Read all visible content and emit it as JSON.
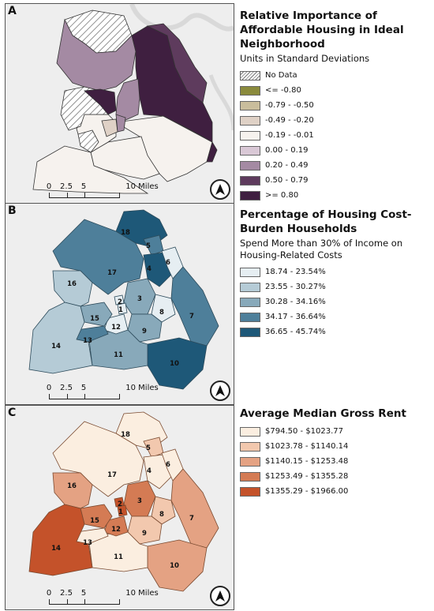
{
  "panels": [
    {
      "letter": "A",
      "title": "Relative Importance of Affordable Housing in Ideal Neighborhood",
      "subtitle": "Units in Standard Deviations",
      "legend": [
        {
          "label": "No Data",
          "color": "hatch"
        },
        {
          "label": "<= -0.80",
          "color": "#8a8a3c"
        },
        {
          "label": "-0.79 - -0.50",
          "color": "#c9bd9c"
        },
        {
          "label": "-0.49 - -0.20",
          "color": "#dfd1c6"
        },
        {
          "label": "-0.19 - -0.01",
          "color": "#f6f2ee"
        },
        {
          "label": "0.00 - 0.19",
          "color": "#d9c8d6"
        },
        {
          "label": "0.20 - 0.49",
          "color": "#a48aa3"
        },
        {
          "label": "0.50 - 0.79",
          "color": "#5e3b5d"
        },
        {
          "label": ">= 0.80",
          "color": "#3f1f40"
        }
      ]
    },
    {
      "letter": "B",
      "title": "Percentage of Housing Cost-Burden Households",
      "subtitle": "Spend More than 30% of Income on Housing-Related Costs",
      "legend": [
        {
          "label": "18.74 - 23.54%",
          "color": "#e6eef2"
        },
        {
          "label": "23.55 - 30.27%",
          "color": "#b5cbd6"
        },
        {
          "label": "30.28 - 34.16%",
          "color": "#88a9ba"
        },
        {
          "label": "34.17 - 36.64%",
          "color": "#4e7f9a"
        },
        {
          "label": "36.65 - 45.74%",
          "color": "#1e5878"
        }
      ]
    },
    {
      "letter": "C",
      "title": "Average Median Gross Rent",
      "subtitle": "",
      "legend": [
        {
          "label": "$794.50 - $1023.77",
          "color": "#fbeee0"
        },
        {
          "label": "$1023.78 - $1140.14",
          "color": "#f2c8ae"
        },
        {
          "label": "$1140.15 - $1253.48",
          "color": "#e4a283"
        },
        {
          "label": "$1253.49 - $1355.28",
          "color": "#d47b54"
        },
        {
          "label": "$1355.29 - $1966.00",
          "color": "#c4522a"
        }
      ]
    }
  ],
  "scalebar": {
    "ticks": [
      "0",
      "2.5",
      "5",
      "10 Miles"
    ]
  },
  "district_labels": [
    "1",
    "2",
    "3",
    "4",
    "5",
    "6",
    "7",
    "8",
    "9",
    "10",
    "11",
    "12",
    "13",
    "14",
    "15",
    "16",
    "17",
    "18"
  ],
  "fills": {
    "A": {
      "nw": "hatch",
      "north": "#a48aa3",
      "w_hatch": "hatch",
      "ne": "#5e3b5d",
      "ne2": "#3f1f40",
      "center": "#d9c8d6",
      "small1": "#dfd1c6",
      "small2": "#a48aa3",
      "se": "#f6f2ee",
      "s": "#f6f2ee",
      "sw": "#f6f2ee",
      "w": "#f6f2ee",
      "e": "#3f1f40",
      "cw": "#3f1f40",
      "cbody": "#a48aa3"
    },
    "B": {
      "1": "#e6eef2",
      "2": "#e6eef2",
      "3": "#88a9ba",
      "4": "#1e5878",
      "5": "#4e7f9a",
      "6": "#e6eef2",
      "7": "#4e7f9a",
      "8": "#e6eef2",
      "9": "#88a9ba",
      "10": "#1e5878",
      "11": "#88a9ba",
      "12": "#e6eef2",
      "13": "#4e7f9a",
      "14": "#b5cbd6",
      "15": "#88a9ba",
      "16": "#b5cbd6",
      "17": "#4e7f9a",
      "18": "#1e5878"
    },
    "C": {
      "1": "#c4522a",
      "2": "#c4522a",
      "3": "#d47b54",
      "4": "#fbeee0",
      "5": "#f2c8ae",
      "6": "#fbeee0",
      "7": "#e4a283",
      "8": "#f2c8ae",
      "9": "#f2c8ae",
      "10": "#e4a283",
      "11": "#fbeee0",
      "12": "#d47b54",
      "13": "#fbeee0",
      "14": "#c4522a",
      "15": "#d47b54",
      "16": "#e4a283",
      "17": "#fbeee0",
      "18": "#fbeee0"
    }
  }
}
